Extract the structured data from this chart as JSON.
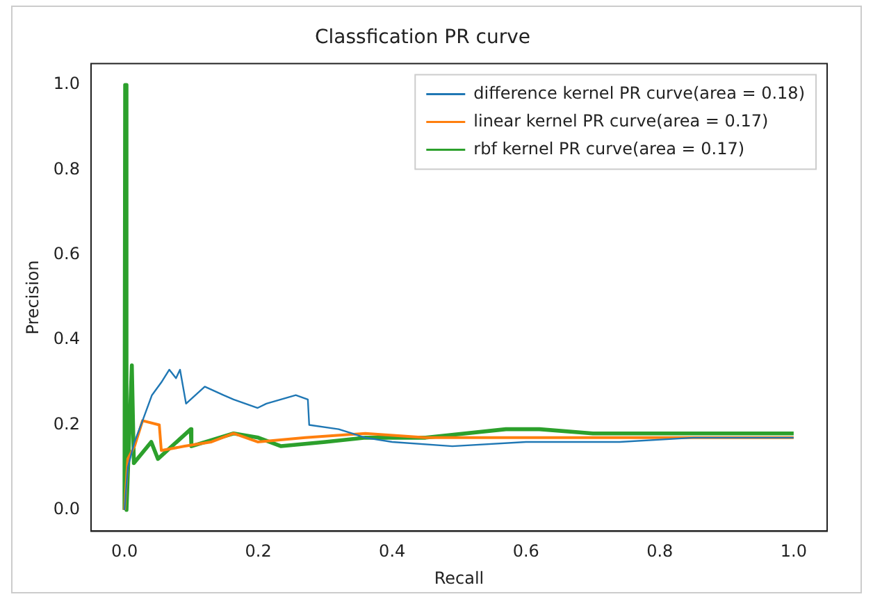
{
  "chart_data": {
    "type": "line",
    "title": "Classfication PR curve",
    "xlabel": "Recall",
    "ylabel": "Precision",
    "xlim": [
      -0.05,
      1.05
    ],
    "ylim": [
      -0.05,
      1.05
    ],
    "xticks": [
      {
        "value": 0,
        "label": "0.0"
      },
      {
        "value": 0.2,
        "label": "0.2"
      },
      {
        "value": 0.4,
        "label": "0.4"
      },
      {
        "value": 0.6,
        "label": "0.6"
      },
      {
        "value": 0.8,
        "label": "0.8"
      },
      {
        "value": 1,
        "label": "1.0"
      }
    ],
    "yticks": [
      {
        "value": 0,
        "label": "0.0"
      },
      {
        "value": 0.2,
        "label": "0.2"
      },
      {
        "value": 0.4,
        "label": "0.4"
      },
      {
        "value": 0.6,
        "label": "0.6"
      },
      {
        "value": 0.8,
        "label": "0.8"
      },
      {
        "value": 1,
        "label": "1.0"
      }
    ],
    "grid": false,
    "legend": "top right",
    "marker": "none",
    "line_style": "solid",
    "series": [
      {
        "name": "difference kernel PR curve(area = 0.18)",
        "color": "#1f77b4",
        "x": [
          0,
          0.005,
          0.015,
          0.027,
          0.041,
          0.055,
          0.067,
          0.077,
          0.083,
          0.092,
          0.12,
          0.148,
          0.163,
          0.199,
          0.212,
          0.256,
          0.274,
          0.276,
          0.32,
          0.36,
          0.4,
          0.49,
          0.6,
          0.74,
          0.85,
          1.0
        ],
        "values": [
          0,
          0.1,
          0.16,
          0.21,
          0.27,
          0.3,
          0.33,
          0.31,
          0.33,
          0.25,
          0.29,
          0.27,
          0.26,
          0.24,
          0.25,
          0.27,
          0.26,
          0.2,
          0.19,
          0.17,
          0.16,
          0.15,
          0.16,
          0.16,
          0.17,
          0.17
        ]
      },
      {
        "name": "linear kernel PR curve(area = 0.17)",
        "color": "#ff7f0e",
        "x": [
          0,
          0.005,
          0.015,
          0.027,
          0.052,
          0.055,
          0.09,
          0.13,
          0.163,
          0.199,
          0.27,
          0.36,
          0.45,
          0.55,
          0.65,
          0.8,
          1.0
        ],
        "values": [
          0,
          0.12,
          0.15,
          0.21,
          0.2,
          0.14,
          0.15,
          0.16,
          0.18,
          0.16,
          0.17,
          0.18,
          0.17,
          0.17,
          0.17,
          0.17,
          0.17
        ]
      },
      {
        "name": "rbf kernel PR curve(area = 0.17)",
        "color": "#2ca02c",
        "x": [
          0,
          0.001,
          0.003,
          0.011,
          0.014,
          0.04,
          0.05,
          0.099,
          0.1,
          0.163,
          0.2,
          0.234,
          0.3,
          0.36,
          0.45,
          0.57,
          0.62,
          0.7,
          0.85,
          1.0
        ],
        "values": [
          0,
          1.0,
          0,
          0.34,
          0.11,
          0.16,
          0.12,
          0.19,
          0.15,
          0.18,
          0.17,
          0.15,
          0.16,
          0.17,
          0.17,
          0.19,
          0.19,
          0.18,
          0.18,
          0.18
        ]
      }
    ]
  }
}
